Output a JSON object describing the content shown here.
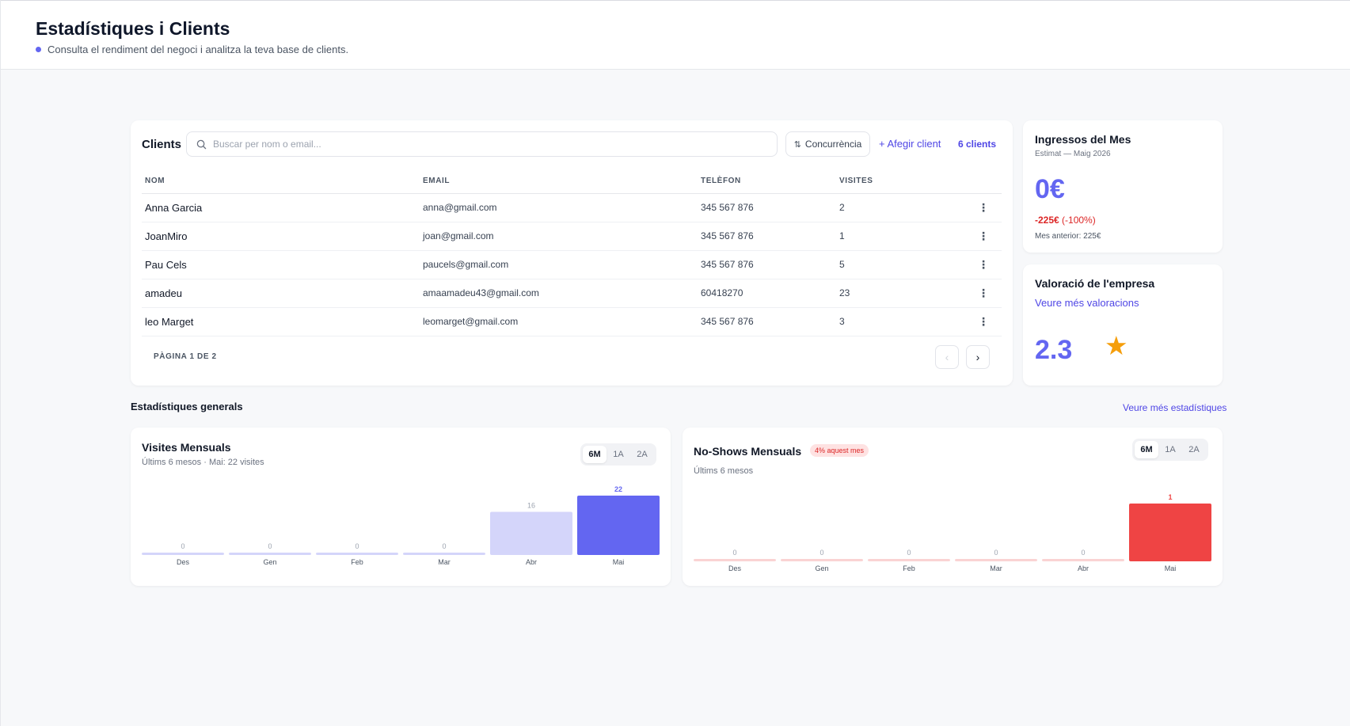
{
  "header": {
    "title": "Estadístiques i Clients",
    "subtitle": "Consulta el rendiment del negoci i analitza la teva base de clients."
  },
  "clients": {
    "title": "Clients",
    "search_placeholder": "Buscar per nom o email...",
    "sort_label": "Concurrència",
    "add_label": "+ Afegir client",
    "count": "6 clients",
    "columns": [
      "NOM",
      "EMAIL",
      "TELÈFON",
      "VISITES"
    ],
    "rows": [
      {
        "name": "Anna Garcia",
        "email": "anna@gmail.com",
        "phone": "345 567 876",
        "visits": "2"
      },
      {
        "name": "JoanMiro",
        "email": "joan@gmail.com",
        "phone": "345 567 876",
        "visits": "1"
      },
      {
        "name": "Pau Cels",
        "email": "paucels@gmail.com",
        "phone": "345 567 876",
        "visits": "5"
      },
      {
        "name": "amadeu",
        "email": "amaamadeu43@gmail.com",
        "phone": "60418270",
        "visits": "23"
      },
      {
        "name": "leo Marget",
        "email": "leomarget@gmail.com",
        "phone": "345 567 876",
        "visits": "3"
      }
    ],
    "pagination": "PÀGINA 1 DE 2"
  },
  "income": {
    "title": "Ingressos del Mes",
    "subtitle": "Estimat — Maig 2026",
    "amount": "0€",
    "delta_value": "-225€",
    "delta_pct": "(-100%)",
    "previous": "Mes anterior: 225€"
  },
  "rating": {
    "title": "Valoració de l'empresa",
    "link": "Veure més valoracions",
    "score": "2.3",
    "star_icon": "star-icon"
  },
  "stats": {
    "title": "Estadístiques generals",
    "link": "Veure més estadístiques"
  },
  "visits_chart": {
    "title": "Visites Mensuals",
    "subtitle": "Últims 6 mesos · Mai: 22 visites",
    "ranges": [
      "6M",
      "1A",
      "2A"
    ],
    "active_range": "6M"
  },
  "noshows_chart": {
    "title": "No-Shows Mensuals",
    "badge": "4% aquest mes",
    "subtitle": "Últims 6 mesos",
    "ranges": [
      "6M",
      "1A",
      "2A"
    ],
    "active_range": "6M"
  },
  "colors": {
    "accent": "#6366f1",
    "accent_light": "#d4d5fa",
    "danger": "#ef4444",
    "danger_light": "#fad3d3",
    "star": "#f59e0b"
  },
  "chart_data": [
    {
      "type": "bar",
      "title": "Visites Mensuals",
      "categories": [
        "Des",
        "Gen",
        "Feb",
        "Mar",
        "Abr",
        "Mai"
      ],
      "values": [
        0,
        0,
        0,
        0,
        16,
        22
      ]
    },
    {
      "type": "bar",
      "title": "No-Shows Mensuals",
      "categories": [
        "Des",
        "Gen",
        "Feb",
        "Mar",
        "Abr",
        "Mai"
      ],
      "values": [
        0,
        0,
        0,
        0,
        0,
        1
      ]
    }
  ]
}
